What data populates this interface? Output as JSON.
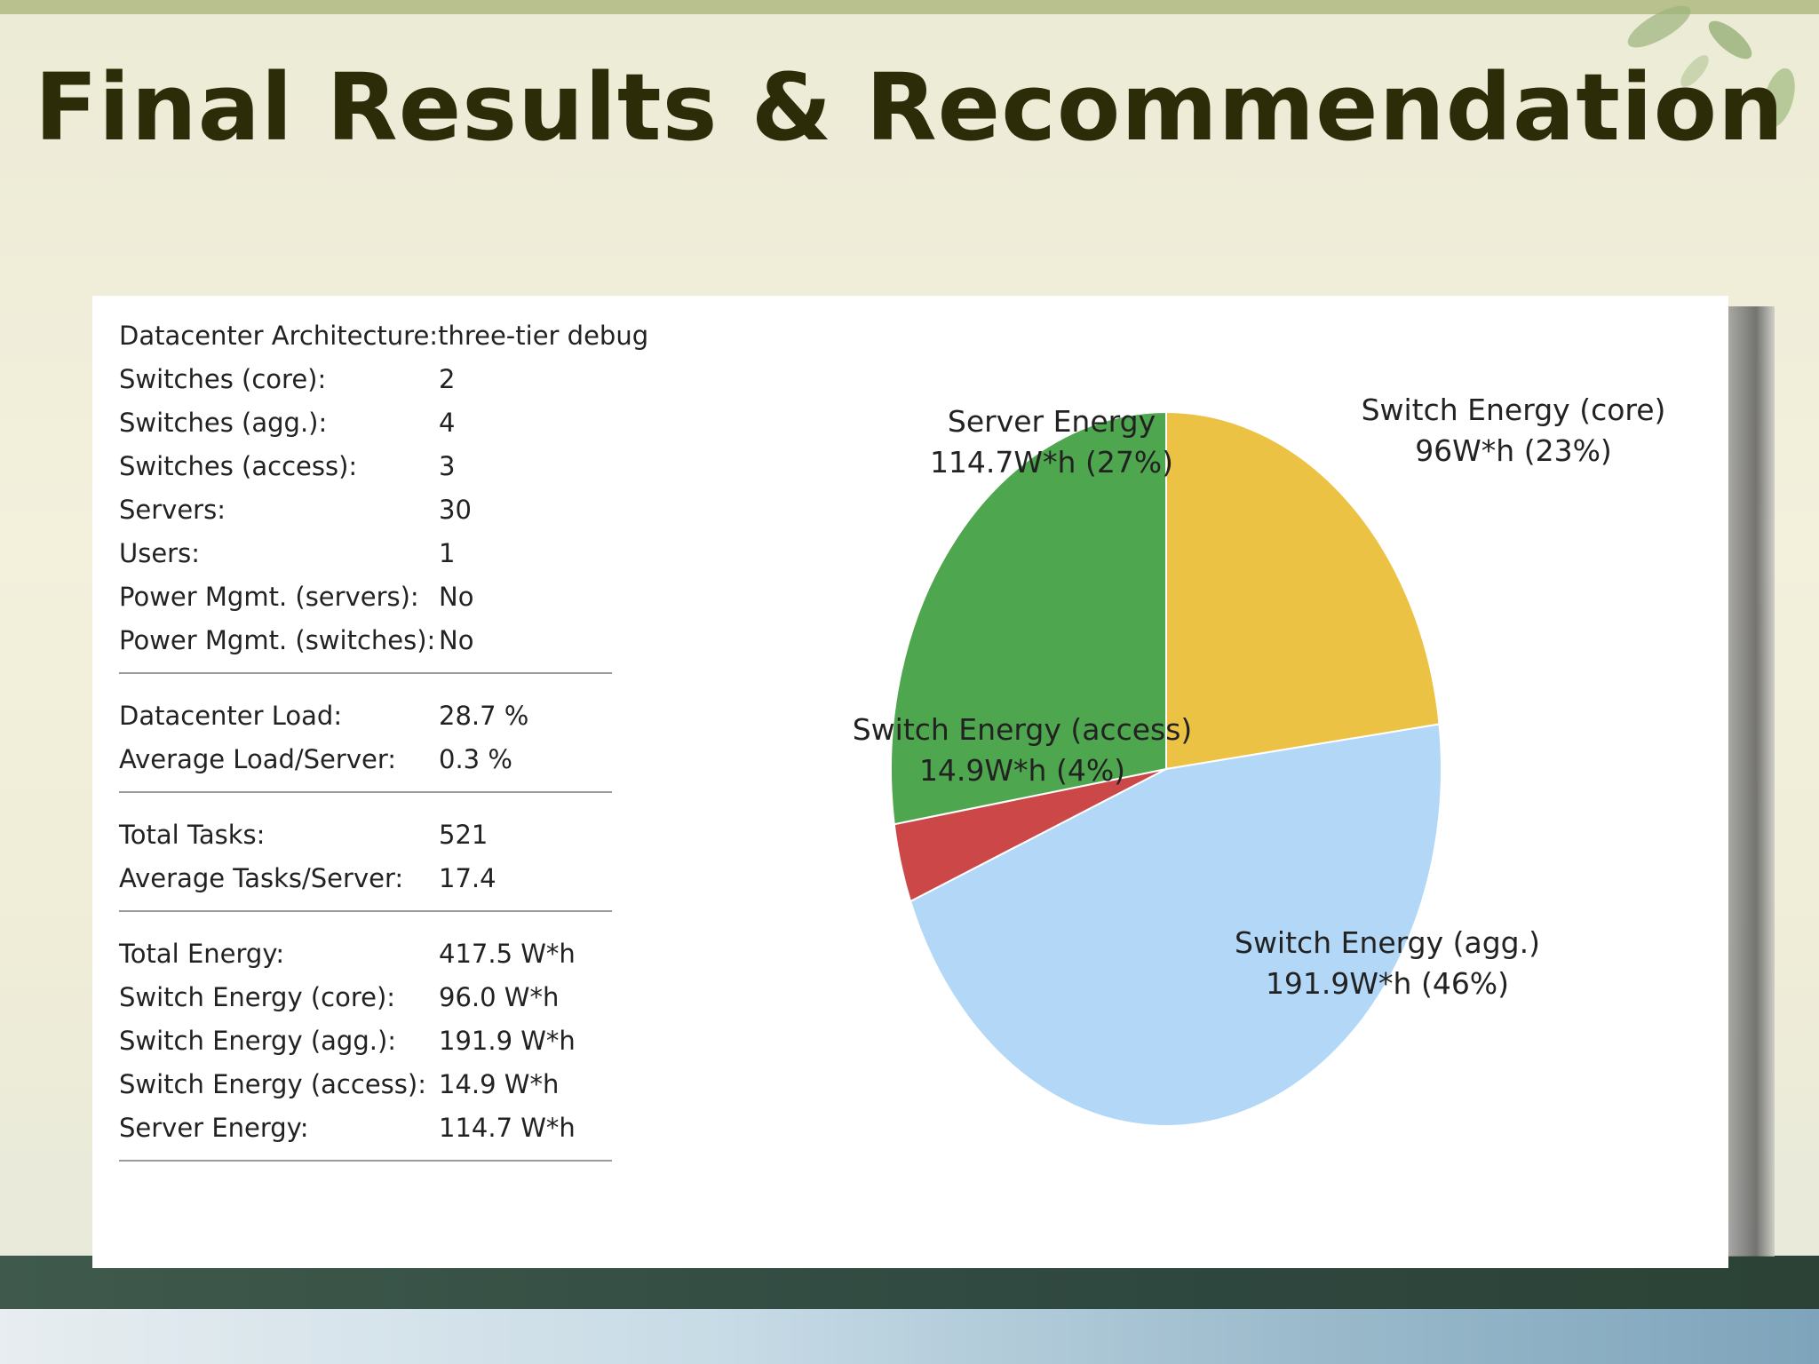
{
  "slide": {
    "title": "Final Results & Recommendation"
  },
  "stats": {
    "groups": [
      {
        "rows": [
          {
            "label": "Datacenter Architecture:",
            "value": "three-tier debug"
          },
          {
            "label": "Switches (core):",
            "value": "2"
          },
          {
            "label": "Switches (agg.):",
            "value": "4"
          },
          {
            "label": "Switches (access):",
            "value": "3"
          },
          {
            "label": "Servers:",
            "value": "30"
          },
          {
            "label": "Users:",
            "value": "1"
          },
          {
            "label": "Power Mgmt. (servers):",
            "value": "No"
          },
          {
            "label": "Power Mgmt. (switches):",
            "value": "No"
          }
        ]
      },
      {
        "rows": [
          {
            "label": "Datacenter Load:",
            "value": "28.7 %"
          },
          {
            "label": "Average Load/Server:",
            "value": "0.3 %"
          }
        ]
      },
      {
        "rows": [
          {
            "label": "Total Tasks:",
            "value": "521"
          },
          {
            "label": "Average Tasks/Server:",
            "value": "17.4"
          }
        ]
      },
      {
        "rows": [
          {
            "label": "Total Energy:",
            "value": "417.5 W*h"
          },
          {
            "label": "Switch Energy (core):",
            "value": "96.0 W*h"
          },
          {
            "label": "Switch Energy (agg.):",
            "value": "191.9 W*h"
          },
          {
            "label": "Switch Energy (access):",
            "value": "14.9 W*h"
          },
          {
            "label": "Server Energy:",
            "value": "114.7 W*h"
          }
        ]
      }
    ]
  },
  "chart_data": {
    "type": "pie",
    "start_angle_deg": 0,
    "direction": "clockwise",
    "slices": [
      {
        "name": "Switch Energy (core)",
        "value": 96.0,
        "label": "96W*h (23%)",
        "color": "#ecc244"
      },
      {
        "name": "Switch Energy (agg.)",
        "value": 191.9,
        "label": "191.9W*h (46%)",
        "color": "#b3d7f7"
      },
      {
        "name": "Switch Energy (access)",
        "value": 14.9,
        "label": "14.9W*h (4%)",
        "color": "#cc4848"
      },
      {
        "name": "Server Energy",
        "value": 114.7,
        "label": "114.7W*h (27%)",
        "color": "#4ea64e"
      }
    ]
  }
}
